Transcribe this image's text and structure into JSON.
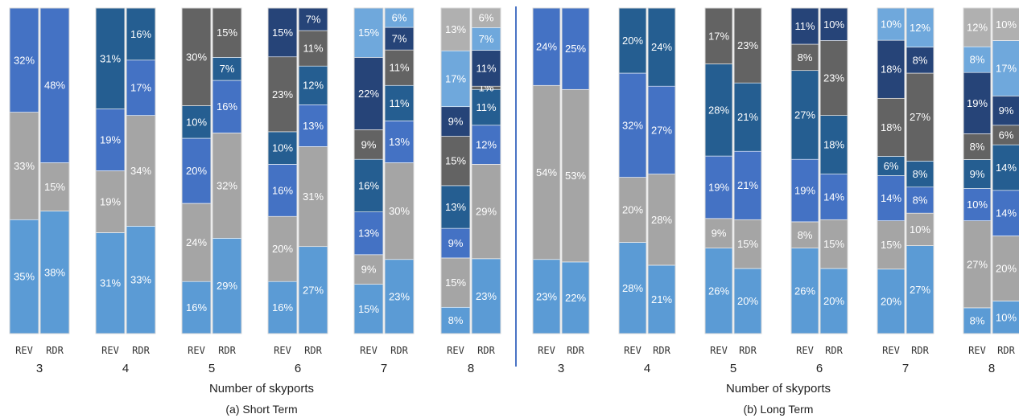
{
  "chart_data": [
    {
      "type": "bar",
      "stacked": true,
      "caption": "(a) Short Term",
      "xlabel": "Number of skyports",
      "categories": [
        "3",
        "4",
        "5",
        "6",
        "7",
        "8"
      ],
      "bar_labels": [
        "REV",
        "RDR"
      ],
      "ylim": [
        0,
        100
      ],
      "groups": [
        {
          "category": "3",
          "bars": [
            {
              "label": "REV",
              "segments": [
                35,
                33,
                32
              ]
            },
            {
              "label": "RDR",
              "segments": [
                38,
                15,
                48
              ]
            }
          ]
        },
        {
          "category": "4",
          "bars": [
            {
              "label": "REV",
              "segments": [
                31,
                19,
                19,
                31
              ]
            },
            {
              "label": "RDR",
              "segments": [
                33,
                34,
                17,
                16
              ]
            }
          ]
        },
        {
          "category": "5",
          "bars": [
            {
              "label": "REV",
              "segments": [
                16,
                24,
                20,
                10,
                30
              ]
            },
            {
              "label": "RDR",
              "segments": [
                29,
                32,
                16,
                7,
                15
              ]
            }
          ]
        },
        {
          "category": "6",
          "bars": [
            {
              "label": "REV",
              "segments": [
                16,
                20,
                16,
                10,
                23,
                15
              ]
            },
            {
              "label": "RDR",
              "segments": [
                27,
                31,
                13,
                12,
                11,
                7
              ]
            }
          ]
        },
        {
          "category": "7",
          "bars": [
            {
              "label": "REV",
              "segments": [
                15,
                9,
                13,
                16,
                9,
                22,
                15
              ]
            },
            {
              "label": "RDR",
              "segments": [
                23,
                30,
                13,
                11,
                11,
                7,
                6
              ]
            }
          ]
        },
        {
          "category": "8",
          "bars": [
            {
              "label": "REV",
              "segments": [
                8,
                15,
                9,
                13,
                15,
                9,
                17,
                13
              ]
            },
            {
              "label": "RDR",
              "segments": [
                23,
                29,
                12,
                11,
                1,
                11,
                7,
                6
              ]
            }
          ]
        }
      ]
    },
    {
      "type": "bar",
      "stacked": true,
      "caption": "(b) Long Term",
      "xlabel": "Number of skyports",
      "categories": [
        "3",
        "4",
        "5",
        "6",
        "7",
        "8"
      ],
      "bar_labels": [
        "REV",
        "RDR"
      ],
      "ylim": [
        0,
        100
      ],
      "groups": [
        {
          "category": "3",
          "bars": [
            {
              "label": "REV",
              "segments": [
                23,
                54,
                24
              ]
            },
            {
              "label": "RDR",
              "segments": [
                22,
                53,
                25
              ]
            }
          ]
        },
        {
          "category": "4",
          "bars": [
            {
              "label": "REV",
              "segments": [
                28,
                20,
                32,
                20
              ]
            },
            {
              "label": "RDR",
              "segments": [
                21,
                28,
                27,
                24
              ]
            }
          ]
        },
        {
          "category": "5",
          "bars": [
            {
              "label": "REV",
              "segments": [
                26,
                9,
                19,
                28,
                17
              ]
            },
            {
              "label": "RDR",
              "segments": [
                20,
                15,
                21,
                21,
                23
              ]
            }
          ]
        },
        {
          "category": "6",
          "bars": [
            {
              "label": "REV",
              "segments": [
                26,
                8,
                19,
                27,
                8,
                11
              ]
            },
            {
              "label": "RDR",
              "segments": [
                20,
                15,
                14,
                18,
                23,
                10
              ]
            }
          ]
        },
        {
          "category": "7",
          "bars": [
            {
              "label": "REV",
              "segments": [
                20,
                15,
                14,
                6,
                18,
                18,
                10
              ]
            },
            {
              "label": "RDR",
              "segments": [
                27,
                10,
                8,
                8,
                27,
                8,
                12
              ]
            }
          ]
        },
        {
          "category": "8",
          "bars": [
            {
              "label": "REV",
              "segments": [
                8,
                27,
                10,
                9,
                8,
                19,
                8,
                12
              ]
            },
            {
              "label": "RDR",
              "segments": [
                10,
                20,
                14,
                14,
                6,
                9,
                17,
                10
              ]
            }
          ]
        }
      ]
    }
  ],
  "segment_colors": [
    "#5b9bd5",
    "#a5a5a5",
    "#4472c4",
    "#255e91",
    "#636363",
    "#264478",
    "#6fa8dc",
    "#b0b0b0"
  ]
}
